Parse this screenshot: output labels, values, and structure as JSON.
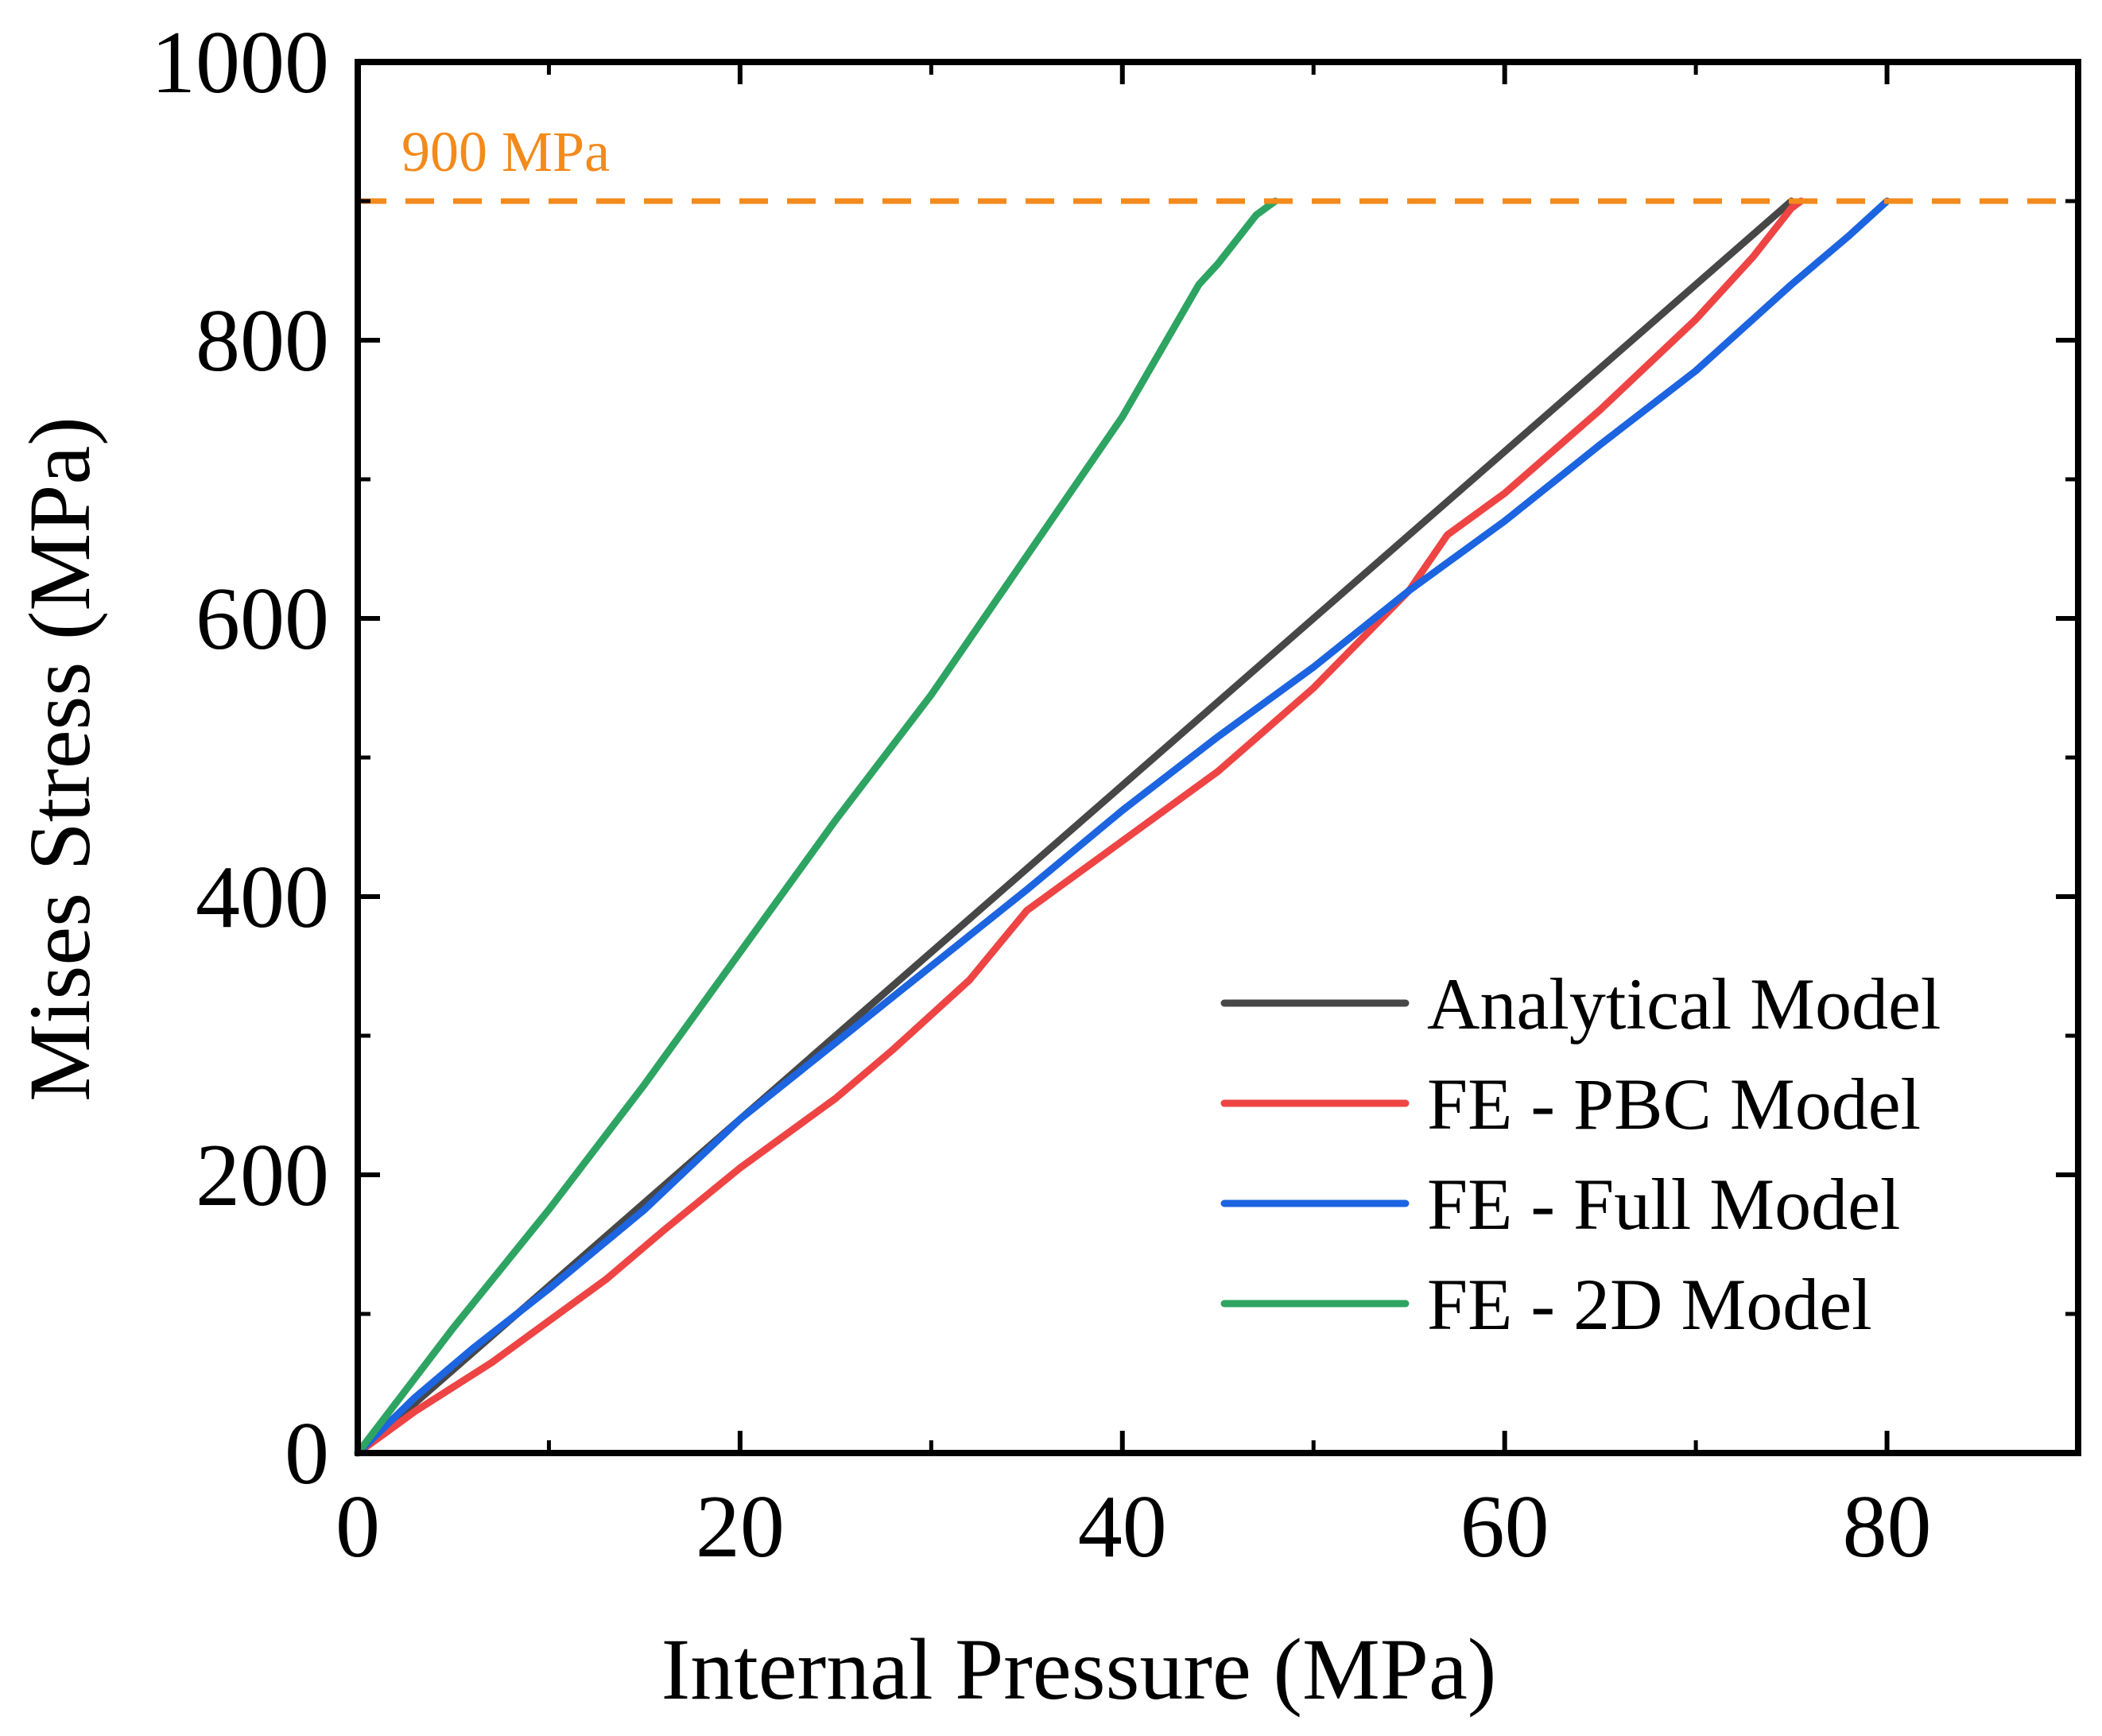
{
  "chart_data": {
    "type": "line",
    "title": "",
    "xlabel": "Internal Pressure (MPa)",
    "ylabel": "Mises Stress (MPa)",
    "xlim": [
      0,
      90
    ],
    "ylim": [
      0,
      1000
    ],
    "xticks": [
      0,
      20,
      40,
      60,
      80
    ],
    "xtick_labels": [
      "0",
      "20",
      "40",
      "60",
      "80"
    ],
    "yticks": [
      0,
      200,
      400,
      600,
      800,
      1000
    ],
    "ytick_labels": [
      "0",
      "200",
      "400",
      "600",
      "800",
      "1000"
    ],
    "x_minor_ticks": [
      10,
      30,
      50,
      70,
      90
    ],
    "y_minor_ticks": [
      100,
      300,
      500,
      700,
      900
    ],
    "grid": false,
    "legend_position": "bottom-right",
    "reference_line": {
      "y": 900,
      "label": "900 MPa",
      "color": "#F28A1C",
      "style": "dashed"
    },
    "series": [
      {
        "name": "Analytical Model",
        "color": "#474747",
        "points": [
          [
            0,
            0
          ],
          [
            10,
            120
          ],
          [
            20,
            240
          ],
          [
            30,
            360
          ],
          [
            40,
            480
          ],
          [
            50,
            600
          ],
          [
            60,
            720
          ],
          [
            70,
            840
          ],
          [
            75,
            900
          ]
        ]
      },
      {
        "name": "FE - PBC Model",
        "color": "#EE4444",
        "points": [
          [
            0,
            0
          ],
          [
            3,
            30
          ],
          [
            7,
            65
          ],
          [
            10,
            95
          ],
          [
            13,
            125
          ],
          [
            16,
            160
          ],
          [
            20,
            205
          ],
          [
            25,
            255
          ],
          [
            28,
            290
          ],
          [
            32,
            340
          ],
          [
            35,
            390
          ],
          [
            37,
            410
          ],
          [
            40,
            440
          ],
          [
            45,
            490
          ],
          [
            50,
            550
          ],
          [
            55,
            620
          ],
          [
            57,
            660
          ],
          [
            60,
            690
          ],
          [
            65,
            750
          ],
          [
            70,
            815
          ],
          [
            73,
            860
          ],
          [
            75,
            895
          ],
          [
            75.5,
            900
          ]
        ]
      },
      {
        "name": "FE - Full Model",
        "color": "#1C64E0",
        "points": [
          [
            0,
            0
          ],
          [
            3,
            40
          ],
          [
            6,
            75
          ],
          [
            10,
            118
          ],
          [
            15,
            175
          ],
          [
            20,
            240
          ],
          [
            25,
            295
          ],
          [
            30,
            350
          ],
          [
            35,
            405
          ],
          [
            40,
            462
          ],
          [
            45,
            515
          ],
          [
            50,
            565
          ],
          [
            55,
            620
          ],
          [
            60,
            670
          ],
          [
            65,
            725
          ],
          [
            70,
            778
          ],
          [
            75,
            840
          ],
          [
            78,
            875
          ],
          [
            80,
            900
          ]
        ]
      },
      {
        "name": "FE - 2D Model",
        "color": "#2EA462",
        "points": [
          [
            0,
            0
          ],
          [
            5,
            90
          ],
          [
            10,
            175
          ],
          [
            15,
            265
          ],
          [
            20,
            360
          ],
          [
            25,
            455
          ],
          [
            30,
            545
          ],
          [
            35,
            645
          ],
          [
            40,
            745
          ],
          [
            44,
            840
          ],
          [
            45,
            855
          ],
          [
            47,
            890
          ],
          [
            48,
            900
          ]
        ]
      }
    ]
  }
}
